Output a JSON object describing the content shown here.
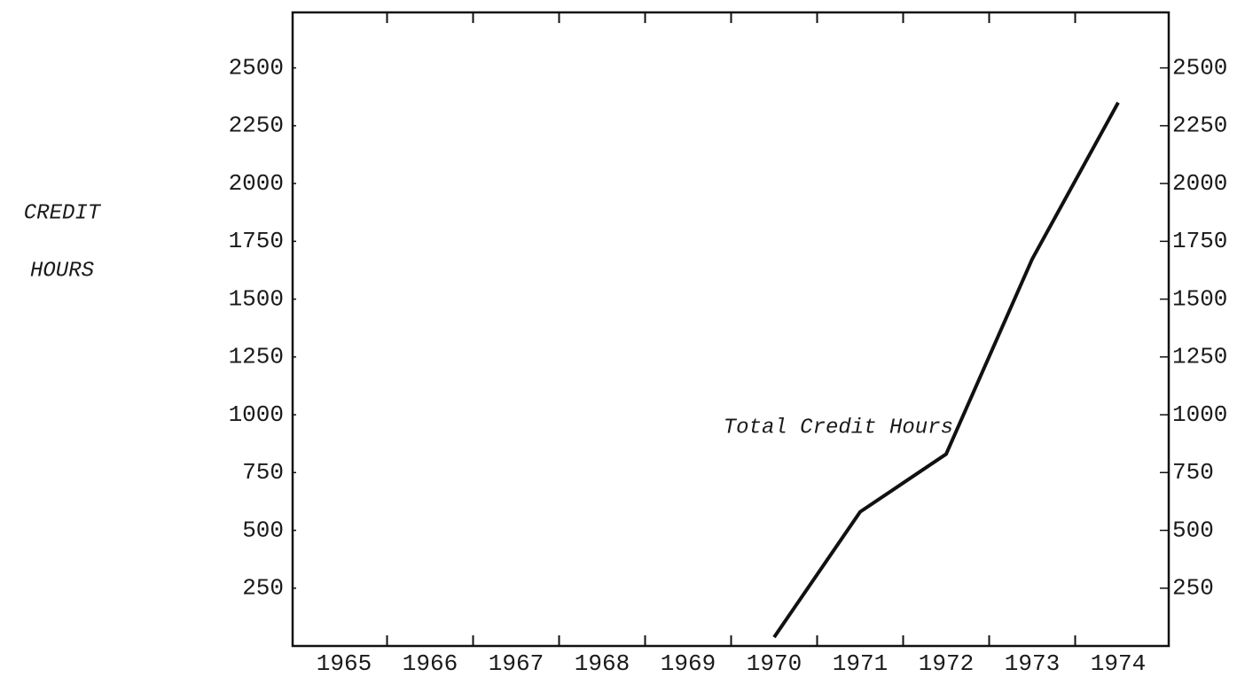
{
  "chart_data": {
    "type": "line",
    "ylabel": [
      "CREDIT",
      "HOURS"
    ],
    "categories": [
      "1965",
      "1966",
      "1967",
      "1968",
      "1969",
      "1970",
      "1971",
      "1972",
      "1973",
      "1974"
    ],
    "series": [
      {
        "name": "Total Credit Hours",
        "color": "#111111",
        "values": [
          null,
          null,
          null,
          null,
          null,
          38,
          580,
          830,
          1673,
          2350
        ]
      }
    ],
    "ylim": [
      0,
      2740
    ],
    "yticks": [
      250,
      500,
      750,
      1000,
      1250,
      1500,
      1750,
      2000,
      2250,
      2500
    ],
    "y2lim": [
      0,
      2740
    ],
    "y2ticks": [
      250,
      500,
      750,
      1000,
      1250,
      1500,
      1750,
      2000,
      2250,
      2500
    ],
    "grid": false
  }
}
